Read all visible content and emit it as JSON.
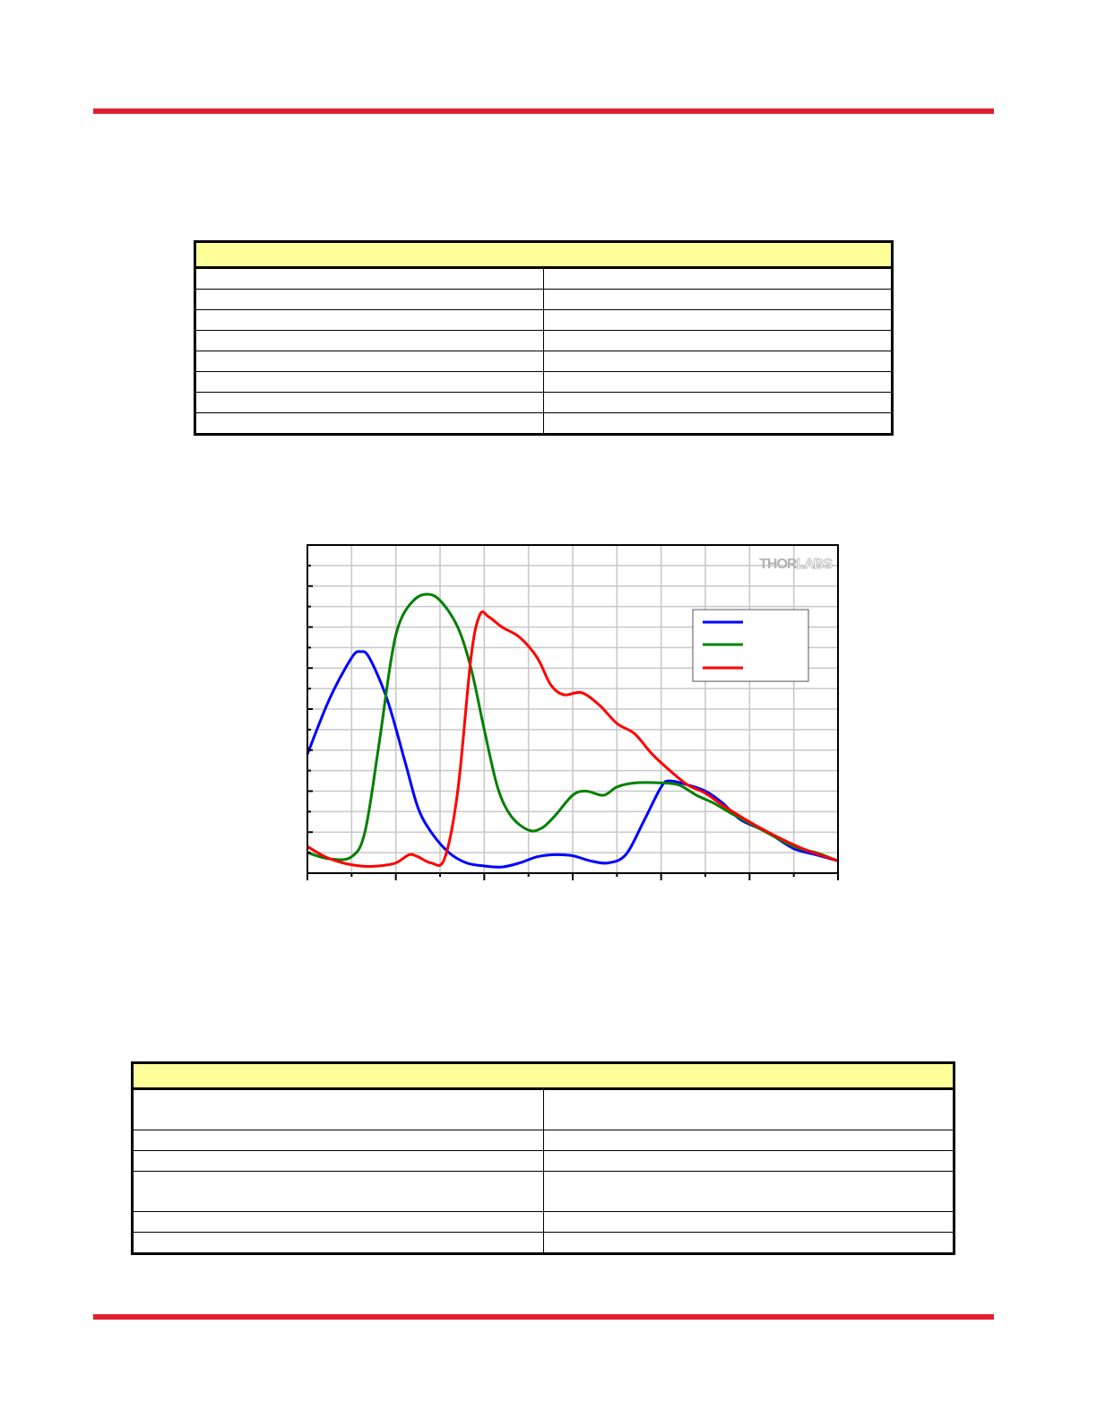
{
  "colors": {
    "rule": "#e0202f",
    "table_header": "#ffff99",
    "series_blue": "#0000ff",
    "series_green": "#008000",
    "series_red": "#ff0000",
    "grid": "#c8c8c8",
    "logo": "#b3b3b3"
  },
  "table1": {
    "header": "",
    "rows": [
      [
        "",
        ""
      ],
      [
        "",
        ""
      ],
      [
        "",
        ""
      ],
      [
        "",
        ""
      ],
      [
        "",
        ""
      ],
      [
        "",
        ""
      ],
      [
        "",
        ""
      ],
      [
        "",
        ""
      ]
    ]
  },
  "table2": {
    "header": "",
    "rows": [
      [
        "",
        ""
      ],
      [
        "",
        ""
      ],
      [
        "",
        ""
      ],
      [
        "",
        ""
      ],
      [
        "",
        ""
      ],
      [
        "",
        ""
      ]
    ]
  },
  "logo": {
    "part1": "THOR",
    "part2": "LABS"
  },
  "chart_data": {
    "type": "line",
    "title": "",
    "xlabel": "",
    "ylabel": "",
    "xlim": [
      0,
      12
    ],
    "ylim": [
      0,
      16
    ],
    "x_major_ticks": 6,
    "y_major_ticks": 8,
    "grid": true,
    "legend_position": "top-right",
    "series": [
      {
        "color": "#0000ff",
        "points": [
          [
            0,
            5.8
          ],
          [
            0.5,
            8.5
          ],
          [
            1,
            10.5
          ],
          [
            1.2,
            10.8
          ],
          [
            1.4,
            10.5
          ],
          [
            1.8,
            8.5
          ],
          [
            2.2,
            5.5
          ],
          [
            2.5,
            3.2
          ],
          [
            2.8,
            2
          ],
          [
            3.2,
            1
          ],
          [
            3.6,
            0.5
          ],
          [
            4,
            0.35
          ],
          [
            4.4,
            0.3
          ],
          [
            4.8,
            0.5
          ],
          [
            5.2,
            0.8
          ],
          [
            5.6,
            0.9
          ],
          [
            6,
            0.85
          ],
          [
            6.4,
            0.6
          ],
          [
            6.8,
            0.5
          ],
          [
            7.2,
            0.9
          ],
          [
            7.6,
            2.5
          ],
          [
            8,
            4.2
          ],
          [
            8.2,
            4.5
          ],
          [
            8.6,
            4.3
          ],
          [
            9,
            4
          ],
          [
            9.4,
            3.4
          ],
          [
            9.8,
            2.6
          ],
          [
            10.4,
            2
          ],
          [
            11,
            1.2
          ],
          [
            11.5,
            0.9
          ],
          [
            12,
            0.6
          ]
        ]
      },
      {
        "color": "#008000",
        "points": [
          [
            0,
            1
          ],
          [
            0.5,
            0.7
          ],
          [
            1,
            0.8
          ],
          [
            1.3,
            2
          ],
          [
            1.6,
            6
          ],
          [
            1.9,
            10.5
          ],
          [
            2.1,
            12.3
          ],
          [
            2.4,
            13.3
          ],
          [
            2.7,
            13.6
          ],
          [
            3,
            13.3
          ],
          [
            3.4,
            12
          ],
          [
            3.7,
            10
          ],
          [
            4,
            7
          ],
          [
            4.3,
            4.2
          ],
          [
            4.6,
            2.8
          ],
          [
            5,
            2.1
          ],
          [
            5.3,
            2.2
          ],
          [
            5.6,
            2.8
          ],
          [
            6,
            3.8
          ],
          [
            6.3,
            4
          ],
          [
            6.7,
            3.8
          ],
          [
            7,
            4.2
          ],
          [
            7.4,
            4.4
          ],
          [
            8,
            4.4
          ],
          [
            8.4,
            4.3
          ],
          [
            8.8,
            3.8
          ],
          [
            9.2,
            3.4
          ],
          [
            9.6,
            2.9
          ],
          [
            10.2,
            2.2
          ],
          [
            11,
            1.3
          ],
          [
            11.5,
            1
          ],
          [
            12,
            0.6
          ]
        ]
      },
      {
        "color": "#ff0000",
        "points": [
          [
            0,
            1.3
          ],
          [
            0.4,
            0.8
          ],
          [
            0.8,
            0.5
          ],
          [
            1.2,
            0.35
          ],
          [
            1.6,
            0.35
          ],
          [
            2,
            0.5
          ],
          [
            2.3,
            0.9
          ],
          [
            2.5,
            0.8
          ],
          [
            2.8,
            0.5
          ],
          [
            3.1,
            0.7
          ],
          [
            3.4,
            4
          ],
          [
            3.7,
            10.5
          ],
          [
            3.9,
            12.6
          ],
          [
            4.1,
            12.5
          ],
          [
            4.4,
            12
          ],
          [
            4.8,
            11.5
          ],
          [
            5.2,
            10.5
          ],
          [
            5.5,
            9.2
          ],
          [
            5.8,
            8.7
          ],
          [
            6.2,
            8.8
          ],
          [
            6.6,
            8.2
          ],
          [
            7,
            7.3
          ],
          [
            7.4,
            6.8
          ],
          [
            7.8,
            5.8
          ],
          [
            8.2,
            5
          ],
          [
            8.6,
            4.3
          ],
          [
            9,
            3.9
          ],
          [
            9.4,
            3.3
          ],
          [
            10,
            2.5
          ],
          [
            10.6,
            1.8
          ],
          [
            11.2,
            1.2
          ],
          [
            12,
            0.6
          ]
        ]
      }
    ]
  }
}
